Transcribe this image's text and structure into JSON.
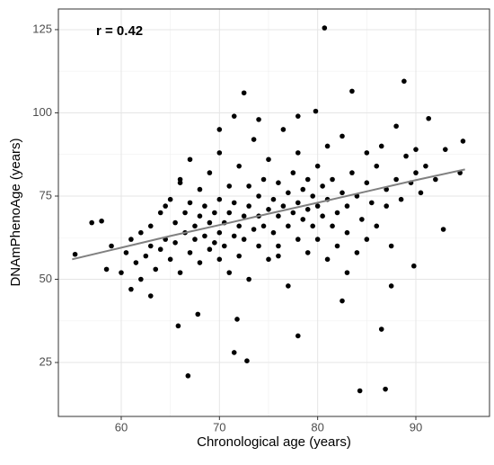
{
  "chart_data": {
    "type": "scatter",
    "xlabel": "Chronological age (years)",
    "ylabel": "DNAmPhenoAge (years)",
    "annotation": "r = 0.42",
    "xlim": [
      53.6,
      97.5
    ],
    "ylim": [
      8.8,
      131.2
    ],
    "xticks": [
      60,
      70,
      80,
      90
    ],
    "yticks": [
      25,
      50,
      75,
      100,
      125
    ],
    "grid": true,
    "color": "#000000",
    "x": [
      59,
      60,
      60.5,
      61,
      61.5,
      62,
      62,
      62.5,
      63,
      63,
      63.5,
      64,
      64,
      64.5,
      65,
      65,
      65.5,
      65.5,
      66,
      66,
      66.5,
      66.5,
      67,
      67,
      67.5,
      67.5,
      68,
      68,
      68,
      68.5,
      68.5,
      69,
      69,
      69,
      69.5,
      69.5,
      70,
      70,
      70,
      70,
      70.5,
      70.5,
      71,
      71,
      71,
      71.5,
      71.5,
      72,
      72,
      72,
      72.5,
      72.5,
      73,
      73,
      73,
      73.5,
      73.5,
      74,
      74,
      74,
      74.5,
      74.5,
      75,
      75,
      75,
      75.5,
      75.5,
      76,
      76,
      76,
      76.5,
      76.5,
      77,
      77,
      77,
      77.5,
      77.5,
      78,
      78,
      78,
      78.5,
      78.5,
      79,
      79,
      79,
      79.5,
      79.5,
      80,
      80,
      80,
      80.5,
      80.5,
      81,
      81,
      81,
      81.5,
      81.5,
      82,
      82,
      82.5,
      82.5,
      83,
      83,
      83.5,
      84,
      84,
      84.5,
      85,
      85,
      85.5,
      86,
      86,
      86.5,
      87,
      87,
      87.5,
      88,
      88.5,
      89,
      89.5,
      90,
      90.5,
      91,
      92,
      93,
      58.5,
      61,
      63,
      64.5,
      66,
      67,
      70,
      74,
      76,
      78,
      83,
      85,
      88,
      90,
      80.7,
      88.8,
      72.5,
      83.5,
      79.8,
      71.5,
      94.8,
      57,
      58,
      55.3,
      66.8,
      72.8,
      71.5,
      71.8,
      67.8,
      65.8,
      78,
      84.3,
      86.9,
      86.5,
      87.5,
      89.8,
      82.5,
      92.8,
      91.3,
      94.5
    ],
    "values": [
      60,
      52,
      58,
      62,
      55,
      64,
      50,
      57,
      60,
      66,
      53,
      59,
      70,
      62,
      56,
      74,
      61,
      67,
      52,
      79,
      64,
      70,
      58,
      73,
      62,
      66,
      55,
      69,
      77,
      63,
      72,
      59,
      67,
      82,
      61,
      70,
      56,
      64,
      74,
      88,
      67,
      60,
      52,
      70,
      78,
      63,
      73,
      57,
      66,
      84,
      69,
      62,
      50,
      72,
      78,
      65,
      92,
      60,
      69,
      75,
      66,
      80,
      56,
      71,
      86,
      64,
      74,
      60,
      69,
      79,
      72,
      95,
      48,
      66,
      76,
      70,
      82,
      62,
      73,
      88,
      68,
      77,
      58,
      71,
      80,
      66,
      75,
      62,
      72,
      84,
      69,
      78,
      56,
      74,
      90,
      66,
      80,
      70,
      60,
      76,
      93,
      64,
      72,
      82,
      58,
      75,
      68,
      79,
      62,
      73,
      84,
      66,
      90,
      72,
      77,
      60,
      80,
      74,
      87,
      79,
      82,
      76,
      84,
      80,
      89,
      53,
      47,
      45,
      72,
      80,
      86,
      95,
      98,
      57,
      99,
      52,
      88,
      96,
      89,
      125.5,
      109.5,
      106,
      106.5,
      100.5,
      99,
      91.5,
      67,
      67.5,
      57.5,
      21,
      25.5,
      28,
      38,
      39.5,
      36,
      33,
      16.5,
      17,
      35,
      48,
      54,
      43.5,
      65,
      98.3,
      82
    ],
    "trend": {
      "color": "#808080",
      "x": [
        55,
        60,
        65,
        70,
        75,
        80,
        85,
        90,
        95
      ],
      "values": [
        56,
        59.5,
        63,
        66.3,
        69.7,
        73,
        76.4,
        79.8,
        83
      ]
    }
  }
}
